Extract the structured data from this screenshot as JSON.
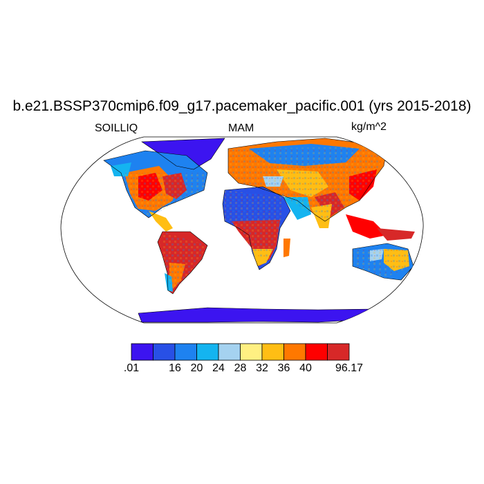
{
  "title": "b.e21.BSSP370cmip6.f09_g17.pacemaker_pacific.001 (yrs 2015-2018)",
  "left_label": "SOILLIQ",
  "center_label": "MAM",
  "units": "kg/m^2",
  "colorbar": {
    "colors": [
      "#3c14f0",
      "#2850e6",
      "#1e82f0",
      "#14b4f0",
      "#a5d2f0",
      "#fff082",
      "#ffbe14",
      "#ff7800",
      "#ff0000",
      "#d72828"
    ],
    "labels": [
      ".01",
      "16",
      "20",
      "24",
      "28",
      "32",
      "36",
      "40",
      "96.17"
    ]
  }
}
